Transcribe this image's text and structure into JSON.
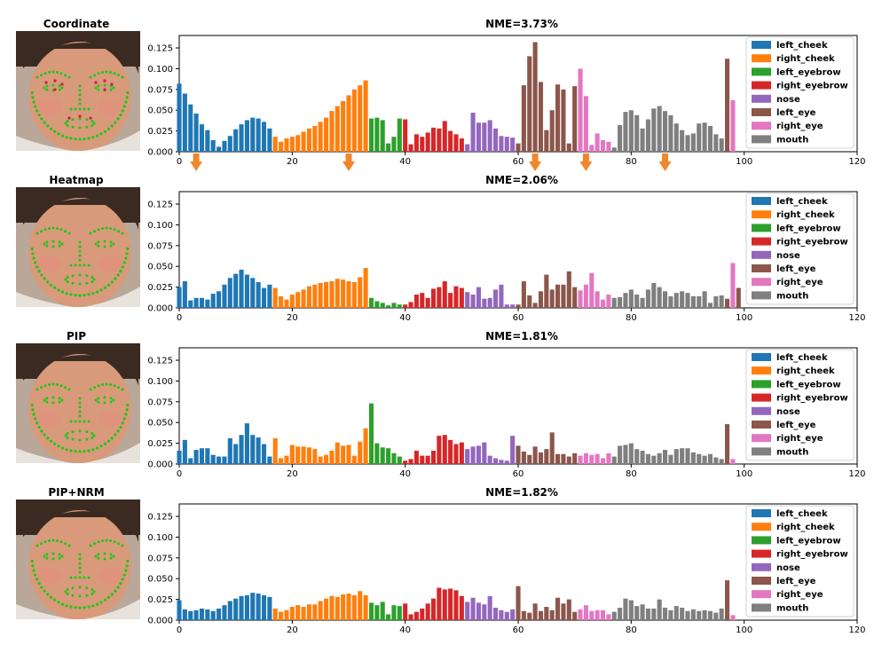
{
  "figure": {
    "legend_labels": [
      "left_cheek",
      "right_cheek",
      "left_eyebrow",
      "right_eyebrow",
      "nose",
      "left_eye",
      "right_eye",
      "mouth"
    ],
    "legend_colors": [
      "#1f77b4",
      "#ff7f0e",
      "#2ca02c",
      "#d62728",
      "#9467bd",
      "#8c564b",
      "#e377c2",
      "#7f7f7f"
    ],
    "arrow_color": "#f0872a",
    "landmark_color": "#22c41a",
    "landmark_inner_color": "#d4145a"
  },
  "chart_data": [
    {
      "type": "bar",
      "method": "Coordinate",
      "title": "NME=3.73%",
      "xlim": [
        0,
        120
      ],
      "ylim": [
        0,
        0.14
      ],
      "xticks": [
        "0",
        "20",
        "40",
        "60",
        "80",
        "100",
        "120"
      ],
      "yticks": [
        "0.000",
        "0.025",
        "0.050",
        "0.075",
        "0.100",
        "0.125"
      ],
      "arrows_at_x": [
        3,
        30,
        63,
        72,
        86
      ],
      "values": [
        0.082,
        0.07,
        0.057,
        0.046,
        0.033,
        0.026,
        0.014,
        0.006,
        0.013,
        0.019,
        0.027,
        0.033,
        0.038,
        0.041,
        0.04,
        0.036,
        0.028,
        0.018,
        0.012,
        0.016,
        0.018,
        0.02,
        0.024,
        0.028,
        0.031,
        0.036,
        0.041,
        0.049,
        0.055,
        0.061,
        0.068,
        0.075,
        0.08,
        0.086,
        0.04,
        0.041,
        0.038,
        0.01,
        0.018,
        0.04,
        0.039,
        0.009,
        0.021,
        0.018,
        0.023,
        0.029,
        0.028,
        0.037,
        0.025,
        0.021,
        0.016,
        0.009,
        0.047,
        0.035,
        0.035,
        0.038,
        0.028,
        0.019,
        0.018,
        0.017,
        0.01,
        0.08,
        0.115,
        0.132,
        0.084,
        0.026,
        0.05,
        0.081,
        0.075,
        0.01,
        0.079,
        0.1,
        0.067,
        0.008,
        0.022,
        0.014,
        0.012,
        0.005,
        0.032,
        0.048,
        0.05,
        0.044,
        0.028,
        0.039,
        0.052,
        0.055,
        0.049,
        0.044,
        0.034,
        0.026,
        0.02,
        0.022,
        0.034,
        0.035,
        0.031,
        0.021,
        0.016,
        0.112,
        0.062
      ]
    },
    {
      "type": "bar",
      "method": "Heatmap",
      "title": "NME=2.06%",
      "xlim": [
        0,
        120
      ],
      "ylim": [
        0,
        0.14
      ],
      "xticks": [
        "0",
        "20",
        "40",
        "60",
        "80",
        "100",
        "120"
      ],
      "yticks": [
        "0.000",
        "0.025",
        "0.050",
        "0.075",
        "0.100",
        "0.125"
      ],
      "arrows_at_x": [],
      "values": [
        0.025,
        0.032,
        0.009,
        0.012,
        0.012,
        0.01,
        0.017,
        0.02,
        0.028,
        0.036,
        0.041,
        0.046,
        0.04,
        0.036,
        0.031,
        0.024,
        0.028,
        0.024,
        0.014,
        0.01,
        0.016,
        0.019,
        0.022,
        0.026,
        0.028,
        0.03,
        0.031,
        0.032,
        0.035,
        0.034,
        0.032,
        0.031,
        0.037,
        0.048,
        0.012,
        0.008,
        0.006,
        0.003,
        0.006,
        0.004,
        0.004,
        0.007,
        0.016,
        0.018,
        0.012,
        0.023,
        0.025,
        0.032,
        0.018,
        0.026,
        0.024,
        0.019,
        0.016,
        0.025,
        0.011,
        0.012,
        0.022,
        0.028,
        0.004,
        0.004,
        0.004,
        0.032,
        0.015,
        0.006,
        0.02,
        0.04,
        0.022,
        0.028,
        0.028,
        0.044,
        0.025,
        0.021,
        0.028,
        0.042,
        0.02,
        0.01,
        0.016,
        0.012,
        0.013,
        0.018,
        0.022,
        0.016,
        0.012,
        0.022,
        0.03,
        0.025,
        0.02,
        0.014,
        0.018,
        0.02,
        0.018,
        0.014,
        0.014,
        0.02,
        0.006,
        0.014,
        0.015,
        0.011,
        0.054,
        0.024
      ]
    },
    {
      "type": "bar",
      "method": "PIP",
      "title": "NME=1.81%",
      "xlim": [
        0,
        120
      ],
      "ylim": [
        0,
        0.14
      ],
      "xticks": [
        "0",
        "20",
        "40",
        "60",
        "80",
        "100",
        "120"
      ],
      "yticks": [
        "0.000",
        "0.025",
        "0.050",
        "0.075",
        "0.100",
        "0.125"
      ],
      "arrows_at_x": [],
      "values": [
        0.016,
        0.029,
        0.007,
        0.017,
        0.019,
        0.019,
        0.011,
        0.009,
        0.009,
        0.031,
        0.024,
        0.035,
        0.049,
        0.035,
        0.032,
        0.024,
        0.009,
        0.031,
        0.007,
        0.01,
        0.023,
        0.021,
        0.021,
        0.02,
        0.018,
        0.009,
        0.011,
        0.016,
        0.026,
        0.022,
        0.023,
        0.01,
        0.027,
        0.043,
        0.073,
        0.025,
        0.02,
        0.019,
        0.013,
        0.009,
        0.004,
        0.006,
        0.016,
        0.01,
        0.01,
        0.016,
        0.034,
        0.035,
        0.029,
        0.024,
        0.026,
        0.018,
        0.021,
        0.022,
        0.026,
        0.01,
        0.007,
        0.005,
        0.004,
        0.034,
        0.022,
        0.015,
        0.011,
        0.021,
        0.014,
        0.018,
        0.038,
        0.012,
        0.012,
        0.009,
        0.013,
        0.01,
        0.013,
        0.011,
        0.012,
        0.007,
        0.013,
        0.009,
        0.022,
        0.023,
        0.025,
        0.018,
        0.016,
        0.012,
        0.01,
        0.013,
        0.017,
        0.011,
        0.018,
        0.019,
        0.019,
        0.014,
        0.012,
        0.01,
        0.012,
        0.008,
        0.006,
        0.048,
        0.006
      ]
    },
    {
      "type": "bar",
      "method": "PIP+NRM",
      "title": "NME=1.82%",
      "xlim": [
        0,
        120
      ],
      "ylim": [
        0,
        0.14
      ],
      "xticks": [
        "0",
        "20",
        "40",
        "60",
        "80",
        "100",
        "120"
      ],
      "yticks": [
        "0.000",
        "0.025",
        "0.050",
        "0.075",
        "0.100",
        "0.125"
      ],
      "arrows_at_x": [],
      "values": [
        0.024,
        0.013,
        0.011,
        0.012,
        0.014,
        0.013,
        0.011,
        0.014,
        0.018,
        0.023,
        0.026,
        0.029,
        0.03,
        0.033,
        0.032,
        0.03,
        0.028,
        0.014,
        0.01,
        0.012,
        0.016,
        0.018,
        0.016,
        0.019,
        0.019,
        0.023,
        0.026,
        0.029,
        0.028,
        0.031,
        0.032,
        0.03,
        0.035,
        0.03,
        0.021,
        0.018,
        0.022,
        0.007,
        0.018,
        0.017,
        0.02,
        0.007,
        0.01,
        0.014,
        0.02,
        0.026,
        0.039,
        0.037,
        0.038,
        0.036,
        0.029,
        0.022,
        0.027,
        0.021,
        0.019,
        0.029,
        0.015,
        0.012,
        0.01,
        0.013,
        0.041,
        0.011,
        0.009,
        0.02,
        0.011,
        0.016,
        0.012,
        0.027,
        0.02,
        0.025,
        0.01,
        0.013,
        0.018,
        0.011,
        0.012,
        0.012,
        0.007,
        0.01,
        0.015,
        0.026,
        0.024,
        0.017,
        0.019,
        0.014,
        0.014,
        0.025,
        0.015,
        0.012,
        0.017,
        0.015,
        0.011,
        0.013,
        0.011,
        0.012,
        0.011,
        0.009,
        0.014,
        0.048,
        0.006
      ]
    }
  ]
}
